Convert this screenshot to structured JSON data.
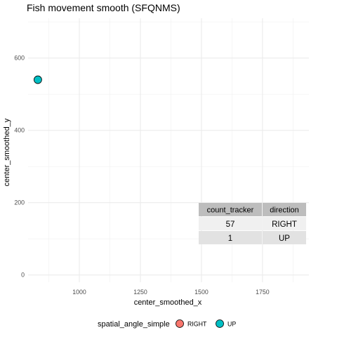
{
  "chart_data": {
    "type": "scatter",
    "title": "Fish movement smooth (SFQNMS)",
    "xlabel": "center_smoothed_x",
    "ylabel": "center_smoothed_y",
    "xlim": [
      790,
      1940
    ],
    "ylim": [
      -20,
      710
    ],
    "x_major_ticks": [
      1000,
      1250,
      1500,
      1750
    ],
    "x_minor_ticks": [
      875,
      1125,
      1375,
      1625,
      1875
    ],
    "y_major_ticks": [
      0,
      200,
      400,
      600
    ],
    "y_minor_ticks": [
      100,
      300,
      500,
      700
    ],
    "x_tick_labels": [
      "1000",
      "1250",
      "1500",
      "1750"
    ],
    "y_tick_labels": [
      "0",
      "200",
      "400",
      "600"
    ],
    "grid": true,
    "points": [
      {
        "x": 830,
        "y": 540,
        "category": "UP"
      }
    ],
    "legend": {
      "position": "bottom",
      "title": "spatial_angle_simple",
      "entries": [
        {
          "label": "RIGHT",
          "color": "#F8766D"
        },
        {
          "label": "UP",
          "color": "#00BFC4"
        }
      ]
    },
    "table": {
      "position": "bottom-right",
      "headers": [
        "count_tracker",
        "direction"
      ],
      "rows": [
        [
          "57",
          "RIGHT"
        ],
        [
          "1",
          "UP"
        ]
      ]
    }
  }
}
